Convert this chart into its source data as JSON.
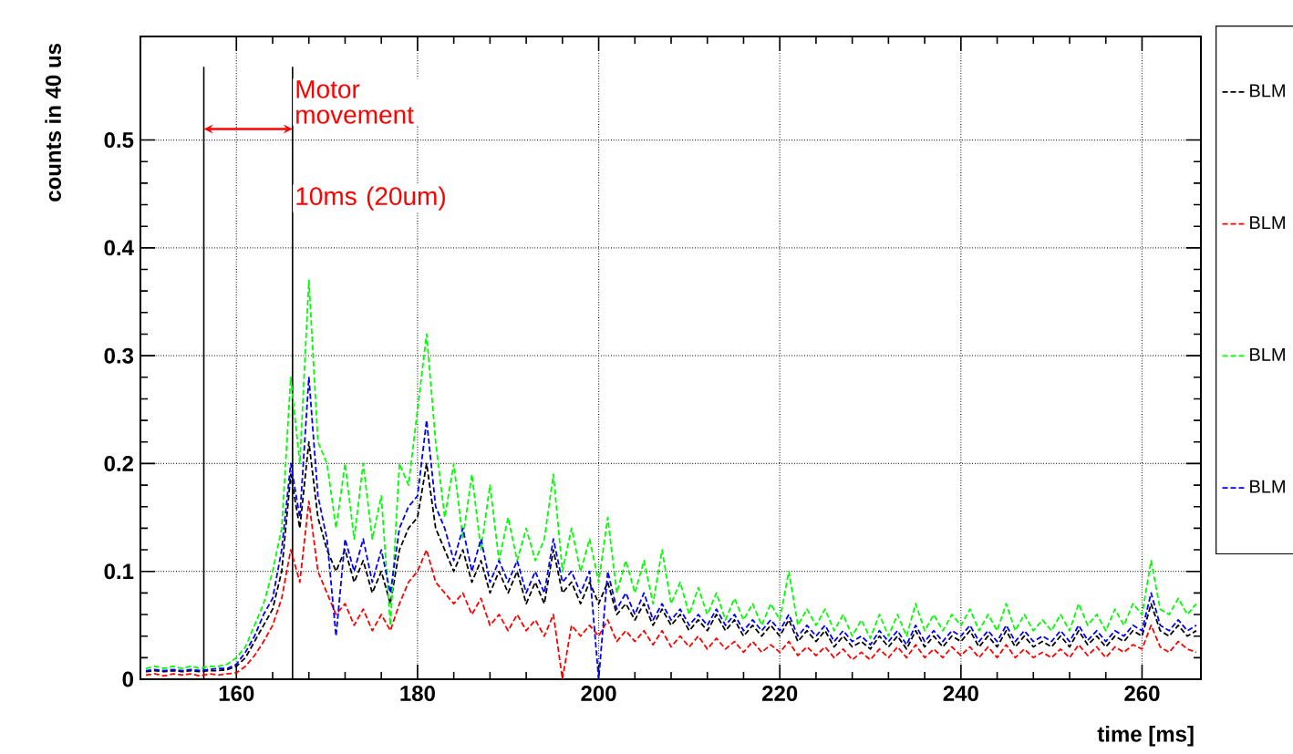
{
  "chart_data": {
    "type": "line",
    "xlabel": "time [ms]",
    "ylabel": "counts in 40 us",
    "xlim": [
      149.4,
      266.5
    ],
    "ylim": [
      0,
      0.596
    ],
    "xticks": [
      160,
      180,
      200,
      220,
      240,
      260
    ],
    "yticks": [
      0,
      0.1,
      0.2,
      0.3,
      0.4,
      0.5
    ],
    "grid": true,
    "legend": "right",
    "marker": "none",
    "line_style": "dashed",
    "x": [
      150,
      151,
      152,
      153,
      154,
      155,
      156,
      157,
      158,
      159,
      160,
      161,
      162,
      163,
      164,
      165,
      166,
      167,
      168,
      169,
      170,
      171,
      172,
      173,
      174,
      175,
      176,
      177,
      178,
      179,
      180,
      181,
      182,
      183,
      184,
      185,
      186,
      187,
      188,
      189,
      190,
      191,
      192,
      193,
      194,
      195,
      196,
      197,
      198,
      199,
      200,
      201,
      202,
      203,
      204,
      205,
      206,
      207,
      208,
      209,
      210,
      211,
      212,
      213,
      214,
      215,
      216,
      217,
      218,
      219,
      220,
      221,
      222,
      223,
      224,
      225,
      226,
      227,
      228,
      229,
      230,
      231,
      232,
      233,
      234,
      235,
      236,
      237,
      238,
      239,
      240,
      241,
      242,
      243,
      244,
      245,
      246,
      247,
      248,
      249,
      250,
      251,
      252,
      253,
      254,
      255,
      256,
      257,
      258,
      259,
      260,
      261,
      262,
      263,
      264,
      265,
      266
    ],
    "series": [
      {
        "name": "BLM",
        "color": "#000000",
        "values": [
          0.007,
          0.008,
          0.007,
          0.008,
          0.007,
          0.008,
          0.007,
          0.008,
          0.008,
          0.009,
          0.012,
          0.02,
          0.035,
          0.05,
          0.065,
          0.1,
          0.19,
          0.14,
          0.22,
          0.15,
          0.12,
          0.1,
          0.12,
          0.09,
          0.11,
          0.08,
          0.1,
          0.07,
          0.12,
          0.14,
          0.15,
          0.2,
          0.14,
          0.12,
          0.1,
          0.12,
          0.09,
          0.11,
          0.08,
          0.1,
          0.08,
          0.1,
          0.07,
          0.09,
          0.07,
          0.12,
          0.08,
          0.09,
          0.07,
          0.09,
          0.07,
          0.09,
          0.06,
          0.07,
          0.055,
          0.07,
          0.05,
          0.065,
          0.05,
          0.06,
          0.045,
          0.055,
          0.045,
          0.06,
          0.045,
          0.055,
          0.04,
          0.05,
          0.04,
          0.05,
          0.04,
          0.055,
          0.035,
          0.045,
          0.035,
          0.045,
          0.03,
          0.04,
          0.03,
          0.035,
          0.028,
          0.04,
          0.03,
          0.04,
          0.028,
          0.045,
          0.03,
          0.04,
          0.03,
          0.04,
          0.035,
          0.045,
          0.03,
          0.04,
          0.03,
          0.045,
          0.03,
          0.04,
          0.03,
          0.035,
          0.03,
          0.04,
          0.03,
          0.045,
          0.032,
          0.04,
          0.03,
          0.04,
          0.035,
          0.045,
          0.04,
          0.07,
          0.045,
          0.04,
          0.05,
          0.04,
          0.045
        ]
      },
      {
        "name": "BLM",
        "color": "#ff0000",
        "values": [
          0.004,
          0.005,
          0.003,
          0.005,
          0.004,
          0.005,
          0.003,
          0.005,
          0.004,
          0.005,
          0.006,
          0.012,
          0.022,
          0.035,
          0.05,
          0.075,
          0.12,
          0.09,
          0.165,
          0.1,
          0.08,
          0.06,
          0.07,
          0.05,
          0.065,
          0.045,
          0.06,
          0.045,
          0.07,
          0.09,
          0.1,
          0.12,
          0.09,
          0.08,
          0.07,
          0.08,
          0.06,
          0.075,
          0.05,
          0.06,
          0.045,
          0.06,
          0.045,
          0.055,
          0.04,
          0.06,
          0.0,
          0.05,
          0.04,
          0.05,
          0.04,
          0.055,
          0.035,
          0.045,
          0.035,
          0.045,
          0.032,
          0.045,
          0.03,
          0.04,
          0.03,
          0.04,
          0.028,
          0.038,
          0.028,
          0.035,
          0.025,
          0.035,
          0.025,
          0.032,
          0.025,
          0.035,
          0.022,
          0.03,
          0.022,
          0.03,
          0.02,
          0.028,
          0.018,
          0.025,
          0.018,
          0.028,
          0.02,
          0.03,
          0.02,
          0.032,
          0.02,
          0.028,
          0.02,
          0.03,
          0.022,
          0.03,
          0.02,
          0.03,
          0.02,
          0.032,
          0.02,
          0.028,
          0.02,
          0.025,
          0.02,
          0.028,
          0.02,
          0.032,
          0.022,
          0.03,
          0.02,
          0.03,
          0.025,
          0.032,
          0.028,
          0.05,
          0.03,
          0.025,
          0.035,
          0.028,
          0.025
        ]
      },
      {
        "name": "BLM",
        "color": "#00ff00",
        "values": [
          0.01,
          0.012,
          0.01,
          0.012,
          0.01,
          0.012,
          0.01,
          0.012,
          0.012,
          0.014,
          0.02,
          0.03,
          0.05,
          0.07,
          0.1,
          0.14,
          0.28,
          0.2,
          0.37,
          0.22,
          0.2,
          0.14,
          0.2,
          0.13,
          0.2,
          0.13,
          0.17,
          0.05,
          0.2,
          0.18,
          0.25,
          0.32,
          0.22,
          0.15,
          0.2,
          0.13,
          0.19,
          0.12,
          0.18,
          0.11,
          0.15,
          0.11,
          0.14,
          0.11,
          0.13,
          0.19,
          0.1,
          0.14,
          0.1,
          0.13,
          0.09,
          0.15,
          0.08,
          0.11,
          0.08,
          0.11,
          0.07,
          0.12,
          0.07,
          0.09,
          0.06,
          0.085,
          0.06,
          0.08,
          0.055,
          0.075,
          0.055,
          0.07,
          0.05,
          0.07,
          0.055,
          0.1,
          0.05,
          0.065,
          0.05,
          0.065,
          0.045,
          0.06,
          0.04,
          0.055,
          0.038,
          0.06,
          0.04,
          0.06,
          0.04,
          0.07,
          0.045,
          0.06,
          0.045,
          0.06,
          0.05,
          0.065,
          0.045,
          0.06,
          0.045,
          0.07,
          0.045,
          0.06,
          0.045,
          0.055,
          0.045,
          0.06,
          0.045,
          0.07,
          0.05,
          0.06,
          0.045,
          0.065,
          0.05,
          0.07,
          0.06,
          0.11,
          0.065,
          0.06,
          0.075,
          0.06,
          0.07
        ]
      },
      {
        "name": "BLM",
        "color": "#0000ff",
        "values": [
          0.008,
          0.009,
          0.008,
          0.009,
          0.008,
          0.009,
          0.008,
          0.009,
          0.01,
          0.01,
          0.014,
          0.025,
          0.04,
          0.06,
          0.075,
          0.12,
          0.2,
          0.15,
          0.28,
          0.17,
          0.13,
          0.04,
          0.13,
          0.1,
          0.13,
          0.09,
          0.12,
          0.08,
          0.14,
          0.16,
          0.17,
          0.24,
          0.16,
          0.14,
          0.11,
          0.14,
          0.1,
          0.13,
          0.09,
          0.11,
          0.09,
          0.11,
          0.08,
          0.1,
          0.08,
          0.13,
          0.09,
          0.1,
          0.08,
          0.1,
          0.0,
          0.1,
          0.065,
          0.08,
          0.06,
          0.08,
          0.055,
          0.07,
          0.055,
          0.065,
          0.05,
          0.06,
          0.05,
          0.065,
          0.05,
          0.06,
          0.045,
          0.055,
          0.045,
          0.055,
          0.045,
          0.06,
          0.04,
          0.05,
          0.04,
          0.05,
          0.035,
          0.045,
          0.035,
          0.04,
          0.032,
          0.045,
          0.035,
          0.045,
          0.032,
          0.05,
          0.035,
          0.045,
          0.035,
          0.045,
          0.04,
          0.05,
          0.035,
          0.045,
          0.035,
          0.05,
          0.035,
          0.045,
          0.035,
          0.04,
          0.035,
          0.045,
          0.035,
          0.05,
          0.036,
          0.045,
          0.035,
          0.045,
          0.04,
          0.05,
          0.045,
          0.08,
          0.05,
          0.045,
          0.055,
          0.045,
          0.05
        ]
      }
    ],
    "ref_lines": [
      {
        "axis": "x",
        "value": 156.4,
        "color": "#000000",
        "line_style": "solid"
      },
      {
        "axis": "x",
        "value": 166.2,
        "color": "#000000",
        "line_style": "solid"
      }
    ],
    "annotations": [
      "Motor movement",
      "10ms (20um)"
    ]
  }
}
